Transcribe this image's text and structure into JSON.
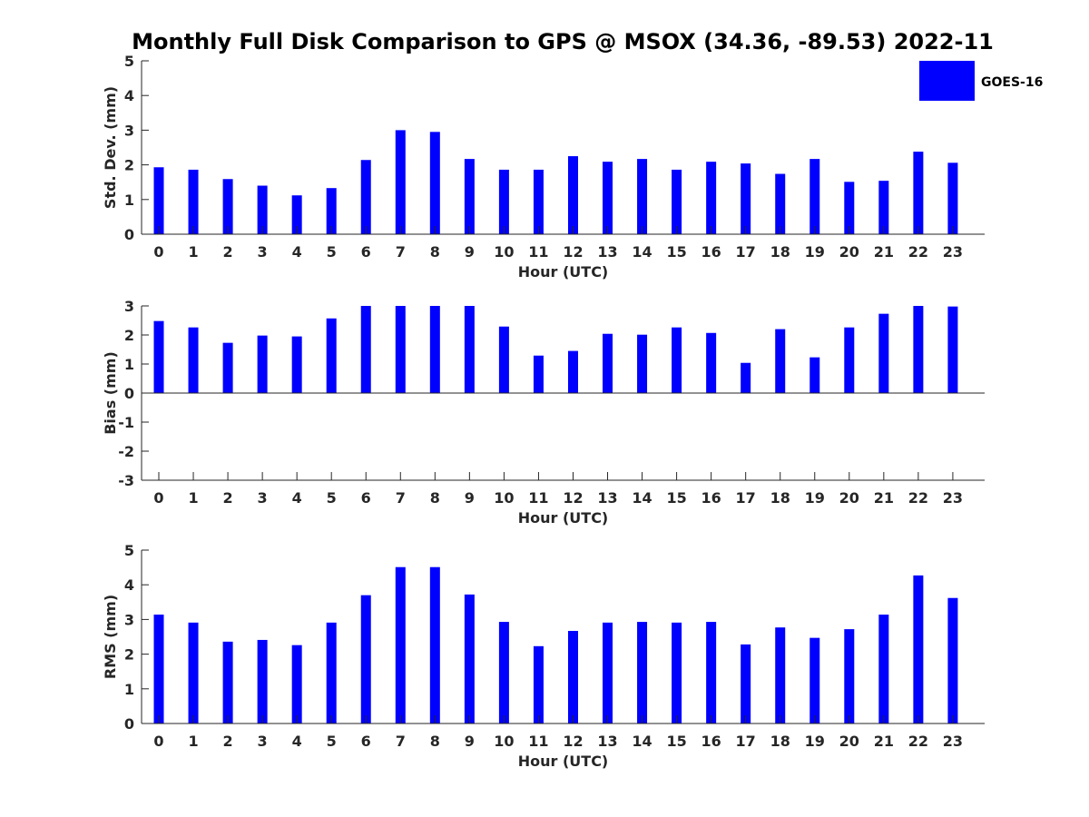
{
  "figure": {
    "title": "Monthly Full Disk Comparison to GPS @ MSOX (34.36, -89.53) 2022-11",
    "bar_color": "#0000ff",
    "legend": {
      "label": "GOES-16",
      "placement": "top-right"
    }
  },
  "chart_data": [
    {
      "type": "bar",
      "name": "std_dev",
      "xlabel": "Hour (UTC)",
      "ylabel": "Std. Dev. (mm)",
      "ylim": [
        0,
        5
      ],
      "yticks": [
        "0",
        "1",
        "2",
        "3",
        "4",
        "5"
      ],
      "categories": [
        "0",
        "1",
        "2",
        "3",
        "4",
        "5",
        "6",
        "7",
        "8",
        "9",
        "10",
        "11",
        "12",
        "13",
        "14",
        "15",
        "16",
        "17",
        "18",
        "19",
        "20",
        "21",
        "22",
        "23"
      ],
      "series": [
        {
          "name": "GOES-16",
          "values": [
            1.93,
            1.86,
            1.59,
            1.4,
            1.12,
            1.33,
            2.14,
            3.0,
            2.95,
            2.17,
            1.86,
            1.86,
            2.25,
            2.09,
            2.17,
            1.86,
            2.09,
            2.04,
            1.74,
            2.17,
            1.51,
            1.54,
            2.38,
            2.06
          ]
        }
      ]
    },
    {
      "type": "bar",
      "name": "bias",
      "xlabel": "Hour (UTC)",
      "ylabel": "Bias (mm)",
      "ylim": [
        -3,
        3
      ],
      "yticks": [
        "-3",
        "-2",
        "-1",
        "0",
        "1",
        "2",
        "3"
      ],
      "categories": [
        "0",
        "1",
        "2",
        "3",
        "4",
        "5",
        "6",
        "7",
        "8",
        "9",
        "10",
        "11",
        "12",
        "13",
        "14",
        "15",
        "16",
        "17",
        "18",
        "19",
        "20",
        "21",
        "22",
        "23"
      ],
      "series": [
        {
          "name": "GOES-16",
          "values": [
            2.48,
            2.26,
            1.73,
            1.98,
            1.95,
            2.57,
            3.0,
            3.0,
            3.0,
            3.0,
            2.29,
            1.29,
            1.45,
            2.04,
            2.01,
            2.26,
            2.07,
            1.04,
            2.2,
            1.23,
            2.26,
            2.73,
            3.0,
            2.98
          ]
        }
      ]
    },
    {
      "type": "bar",
      "name": "rms",
      "xlabel": "Hour (UTC)",
      "ylabel": "RMS (mm)",
      "ylim": [
        0,
        5
      ],
      "yticks": [
        "0",
        "1",
        "2",
        "3",
        "4",
        "5"
      ],
      "categories": [
        "0",
        "1",
        "2",
        "3",
        "4",
        "5",
        "6",
        "7",
        "8",
        "9",
        "10",
        "11",
        "12",
        "13",
        "14",
        "15",
        "16",
        "17",
        "18",
        "19",
        "20",
        "21",
        "22",
        "23"
      ],
      "series": [
        {
          "name": "GOES-16",
          "values": [
            3.14,
            2.91,
            2.36,
            2.41,
            2.26,
            2.91,
            3.7,
            4.51,
            4.51,
            3.72,
            2.93,
            2.23,
            2.67,
            2.91,
            2.93,
            2.91,
            2.93,
            2.28,
            2.77,
            2.47,
            2.72,
            3.14,
            4.27,
            3.62
          ]
        }
      ]
    }
  ]
}
